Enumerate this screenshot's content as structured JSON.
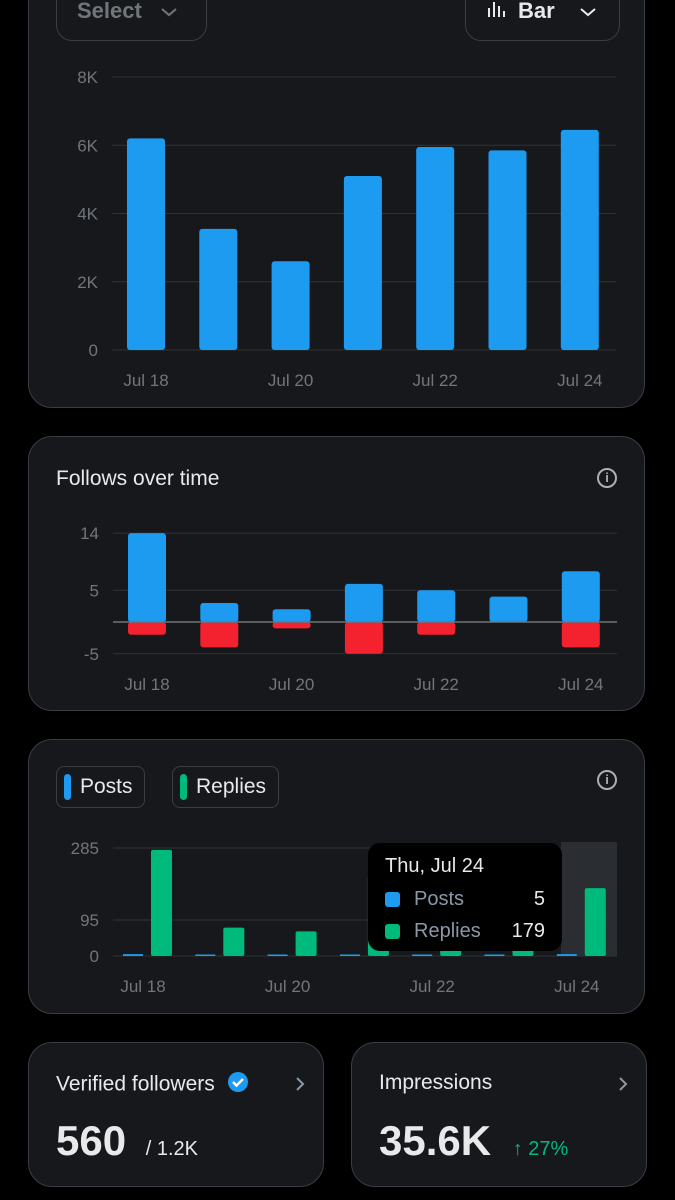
{
  "header": {
    "select_label": "Select",
    "chart_type_label": "Bar"
  },
  "impressions_chart": {
    "x_tick_labels": [
      "Jul 18",
      "Jul 20",
      "Jul 22",
      "Jul 24"
    ],
    "y_tick_labels": [
      "8K",
      "6K",
      "4K",
      "2K",
      "0"
    ]
  },
  "follows": {
    "title": "Follows over time",
    "info_glyph": "i",
    "x_tick_labels": [
      "Jul 18",
      "Jul 20",
      "Jul 22",
      "Jul 24"
    ],
    "y_tick_labels": [
      "14",
      "5",
      "-5"
    ]
  },
  "activity": {
    "legend": [
      {
        "label": "Posts",
        "color": "#1d9bf0"
      },
      {
        "label": "Replies",
        "color": "#00ba7c"
      }
    ],
    "info_glyph": "i",
    "x_tick_labels": [
      "Jul 18",
      "Jul 20",
      "Jul 22",
      "Jul 24"
    ],
    "y_tick_labels": [
      "285",
      "95",
      "0"
    ],
    "tooltip": {
      "date": "Thu, Jul 24",
      "rows": [
        {
          "label": "Posts",
          "value": "5"
        },
        {
          "label": "Replies",
          "value": "179"
        }
      ]
    }
  },
  "stats": {
    "verified": {
      "label": "Verified followers",
      "value": "560",
      "total": "/ 1.2K"
    },
    "impressions": {
      "label": "Impressions",
      "value": "35.6K",
      "change": "↑ 27%"
    }
  },
  "colors": {
    "blue": "#1d9bf0",
    "green": "#00ba7c",
    "red": "#f4212e"
  },
  "chart_data": [
    {
      "type": "bar",
      "categories": [
        "Jul 18",
        "Jul 19",
        "Jul 20",
        "Jul 21",
        "Jul 22",
        "Jul 23",
        "Jul 24"
      ],
      "values": [
        6200,
        3550,
        2600,
        5100,
        5950,
        5850,
        6450
      ],
      "ylim": [
        0,
        8000
      ],
      "grid": true
    },
    {
      "type": "bar",
      "title": "Follows over time",
      "categories": [
        "Jul 18",
        "Jul 19",
        "Jul 20",
        "Jul 21",
        "Jul 22",
        "Jul 23",
        "Jul 24"
      ],
      "series": [
        {
          "values": [
            14,
            3,
            2,
            6,
            5,
            4,
            8
          ]
        },
        {
          "values": [
            -2,
            -4,
            -1,
            -5,
            -2,
            0,
            -4
          ]
        }
      ],
      "ylim": [
        -5,
        14
      ],
      "grid": true
    },
    {
      "type": "bar",
      "categories": [
        "Jul 18",
        "Jul 19",
        "Jul 20",
        "Jul 21",
        "Jul 22",
        "Jul 23",
        "Jul 24"
      ],
      "series": [
        {
          "name": "Posts",
          "values": [
            5,
            3,
            2,
            4,
            3,
            3,
            5
          ]
        },
        {
          "name": "Replies",
          "values": [
            280,
            75,
            65,
            210,
            205,
            200,
            179
          ]
        }
      ],
      "ylim": [
        0,
        285
      ],
      "grid": true
    }
  ]
}
